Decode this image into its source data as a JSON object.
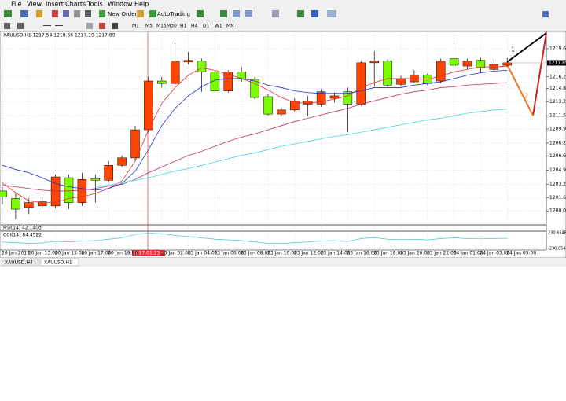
{
  "menu": [
    "File",
    "View",
    "Insert",
    "Charts",
    "Tools",
    "Window",
    "Help"
  ],
  "toolbar": {
    "new_order": "New Order",
    "autotrading": "AutoTrading",
    "timeframes": [
      "M1",
      "M5",
      "M15",
      "M30",
      "H1",
      "H4",
      "D1",
      "W1",
      "MN"
    ]
  },
  "chart_data": {
    "type": "candlestick",
    "title": "XAUUSD,H1  1217.54 1218.66 1217.19 1217.89",
    "categories": [
      "20 Jan 2017",
      null,
      "20 Jan 13:00",
      null,
      "20 Jan 15:00",
      null,
      "20 Jan 17:00",
      null,
      "20 Jan 19:00",
      null,
      null,
      null,
      "23 Jan 02:00",
      null,
      "23 Jan 04:00",
      null,
      "23 Jan 06:00",
      null,
      "23 Jan 08:00",
      null,
      "23 Jan 10:00",
      null,
      "23 Jan 12:00",
      null,
      "23 Jan 14:00",
      null,
      "23 Jan 16:00",
      null,
      "23 Jan 18:00",
      null,
      "23 Jan 20:00",
      null,
      "23 Jan 22:00",
      null,
      "24 Jan 01:00",
      null,
      "24 Jan 03:00",
      null,
      "24 Jan 05:00"
    ],
    "open": [
      1202.4,
      1201.5,
      1200.4,
      1200.6,
      1200.6,
      1204.0,
      1201.0,
      1203.9,
      1203.7,
      1205.5,
      1206.4,
      1209.8,
      1215.7,
      1215.4,
      1218.0,
      1218.1,
      1216.8,
      1214.5,
      1216.8,
      1215.9,
      1213.8,
      1211.7,
      1212.2,
      1212.9,
      1212.9,
      1213.6,
      1214.4,
      1212.9,
      1217.9,
      1218.1,
      1215.3,
      1215.6,
      1216.4,
      1215.7,
      1218.4,
      1217.5,
      1218.2,
      1217.1,
      1217.6
    ],
    "high": [
      1202.9,
      1202.2,
      1201.5,
      1201.7,
      1204.4,
      1204.4,
      1204.6,
      1204.4,
      1206.0,
      1206.7,
      1210.3,
      1216.2,
      1216.2,
      1220.3,
      1219.2,
      1218.4,
      1217.0,
      1217.0,
      1217.4,
      1216.2,
      1214.1,
      1212.5,
      1213.6,
      1213.9,
      1214.7,
      1214.3,
      1214.9,
      1218.1,
      1219.3,
      1218.3,
      1216.3,
      1217.0,
      1216.6,
      1218.4,
      1220.2,
      1218.4,
      1218.5,
      1218.4,
      1218.5
    ],
    "low": [
      1200.8,
      1199.0,
      1199.6,
      1200.2,
      1200.3,
      1200.2,
      1200.6,
      1201.0,
      1203.4,
      1205.3,
      1206.0,
      1209.5,
      1214.9,
      1214.9,
      1217.7,
      1214.4,
      1214.3,
      1214.3,
      1215.6,
      1213.5,
      1211.5,
      1211.4,
      1212.0,
      1211.4,
      1212.6,
      1213.1,
      1209.5,
      1212.7,
      1215.0,
      1215.0,
      1215.0,
      1215.4,
      1215.2,
      1215.4,
      1217.3,
      1217.1,
      1216.8,
      1217.0,
      1217.4
    ],
    "close": [
      1201.7,
      1200.2,
      1201.0,
      1201.1,
      1204.1,
      1201.0,
      1203.8,
      1203.7,
      1205.5,
      1206.4,
      1209.8,
      1215.7,
      1215.4,
      1218.1,
      1218.2,
      1216.8,
      1214.5,
      1216.8,
      1215.9,
      1213.7,
      1211.7,
      1212.2,
      1213.3,
      1213.3,
      1214.4,
      1213.9,
      1212.9,
      1217.9,
      1218.1,
      1215.2,
      1216.0,
      1216.4,
      1215.4,
      1218.1,
      1217.6,
      1218.1,
      1217.3,
      1217.7,
      1217.9
    ],
    "up_color": "#ff4500",
    "down_color": "#7cfc00",
    "ylim": [
      1198.4,
      1221.5
    ],
    "yticks": [
      {
        "value": 1219.6,
        "label": "1219.60"
      },
      {
        "value": 1216.2,
        "label": "1216.20"
      },
      {
        "value": 1214.8,
        "label": "1214.80"
      },
      {
        "value": 1213.2,
        "label": "1213.20"
      },
      {
        "value": 1211.5,
        "label": "1211.50"
      },
      {
        "value": 1209.9,
        "label": "1209.90"
      },
      {
        "value": 1208.2,
        "label": "1208.20"
      },
      {
        "value": 1206.6,
        "label": "1206.60"
      },
      {
        "value": 1204.9,
        "label": "1204.90"
      },
      {
        "value": 1203.2,
        "label": "1203.20"
      },
      {
        "value": 1201.6,
        "label": "1201.60"
      },
      {
        "value": 1200,
        "label": "1200.00"
      }
    ],
    "grid": true,
    "current_price": 1217.89,
    "crosshair_label": "2017.01.23 01:00",
    "moving_averages": [
      {
        "color": "#e8302a",
        "values": [
          1203.4,
          1202.2,
          1201.2,
          1201.0,
          1201.0,
          1201.5,
          1201.7,
          1202.1,
          1202.7,
          1203.6,
          1206.0,
          1209.8,
          1213.0,
          1214.9,
          1216.4,
          1217.3,
          1217.0,
          1216.5,
          1216.0,
          1215.4,
          1214.6,
          1213.7,
          1213.1,
          1213.0,
          1213.2,
          1213.5,
          1213.9,
          1214.9,
          1215.5,
          1216.0,
          1216.0,
          1216.0,
          1215.9,
          1216.3,
          1216.8,
          1217.1,
          1217.4,
          1217.4,
          1217.5
        ]
      },
      {
        "color": "#1e2fc8",
        "values": [
          1205.5,
          1205.0,
          1204.6,
          1204.0,
          1203.3,
          1202.9,
          1202.7,
          1202.5,
          1202.7,
          1203.3,
          1204.8,
          1207.4,
          1210.3,
          1212.4,
          1213.9,
          1215.0,
          1215.8,
          1216.0,
          1216.0,
          1215.7,
          1215.2,
          1214.9,
          1214.5,
          1214.3,
          1214.2,
          1214.2,
          1214.2,
          1214.5,
          1214.9,
          1214.9,
          1214.9,
          1215.2,
          1215.4,
          1215.6,
          1216.0,
          1216.4,
          1216.7,
          1216.9,
          1217.0
        ]
      },
      {
        "color": "#c0306a",
        "values": [
          1203.1,
          1202.9,
          1202.7,
          1202.5,
          1202.4,
          1202.4,
          1202.5,
          1202.7,
          1203.0,
          1203.2,
          1203.8,
          1204.6,
          1205.3,
          1206.0,
          1206.7,
          1207.2,
          1207.8,
          1208.4,
          1208.9,
          1209.3,
          1209.8,
          1210.3,
          1210.8,
          1211.2,
          1211.6,
          1212.0,
          1212.4,
          1212.9,
          1213.3,
          1213.7,
          1214.1,
          1214.4,
          1214.6,
          1214.9,
          1215.0,
          1215.2,
          1215.3,
          1215.4,
          1215.5
        ]
      },
      {
        "color": "#40d8e0",
        "values": [
          null,
          null,
          null,
          null,
          null,
          null,
          null,
          1202.9,
          1203.1,
          1203.4,
          1203.7,
          1204.0,
          1204.4,
          1204.8,
          1205.1,
          1205.5,
          1205.9,
          1206.3,
          1206.7,
          1207.0,
          1207.4,
          1207.8,
          1208.1,
          1208.4,
          1208.7,
          1209.0,
          1209.2,
          1209.5,
          1209.8,
          1210.1,
          1210.4,
          1210.7,
          1211.0,
          1211.2,
          1211.5,
          1211.8,
          1212.0,
          1212.2,
          1212.3
        ]
      }
    ],
    "annotations": [
      "1.",
      "2"
    ]
  },
  "indicators": [
    {
      "label": "RSI(14) 42.1403"
    },
    {
      "label": "CCI(14) 84.4522",
      "color": "#40c8d0",
      "ylim": [
        -230.6548,
        230.6548
      ],
      "yticks": [
        230.6548,
        -230.6548
      ],
      "values": [
        -40,
        -60,
        -80,
        -70,
        -20,
        -40,
        -10,
        0,
        40,
        80,
        180,
        220,
        200,
        150,
        120,
        80,
        40,
        20,
        0,
        -40,
        -80,
        -90,
        -60,
        -40,
        -10,
        0,
        -30,
        60,
        90,
        40,
        30,
        40,
        20,
        60,
        80,
        60,
        50,
        60,
        70
      ]
    }
  ],
  "tabs": [
    "XAUUSD,H4",
    "XAUUSD,H1"
  ]
}
